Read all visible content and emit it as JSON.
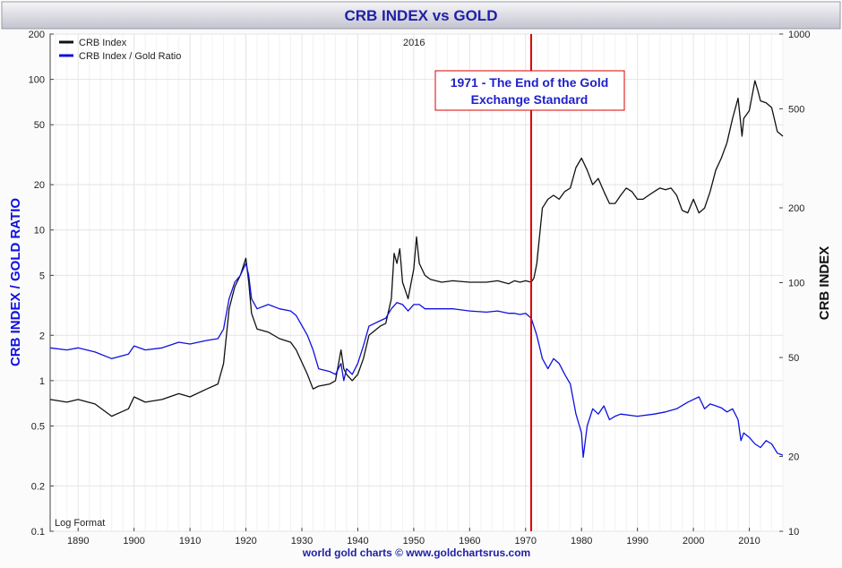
{
  "chart_data": {
    "type": "line",
    "title": "CRB INDEX vs GOLD",
    "year_label": "2016",
    "y_left_label": "CRB INDEX / GOLD RATIO",
    "y_right_label": "CRB INDEX",
    "log_note": "Log Format",
    "footer": "world gold charts © www.goldchartsrus.com",
    "x_range": [
      1885,
      2016
    ],
    "y_left_range": [
      0.1,
      200
    ],
    "y_right_range": [
      10,
      1000
    ],
    "y_scale": "log",
    "x_ticks": [
      1890,
      1900,
      1910,
      1920,
      1930,
      1940,
      1950,
      1960,
      1970,
      1980,
      1990,
      2000,
      2010
    ],
    "x_tick_labels": [
      "1890",
      "1900",
      "1910",
      "1920",
      "1930",
      "1940",
      "1950",
      "1960",
      "1970",
      "1980",
      "1990",
      "2000",
      "2010"
    ],
    "y_left_ticks": [
      0.1,
      0.2,
      0.5,
      1,
      2,
      5,
      10,
      20,
      50,
      100,
      200
    ],
    "y_left_tick_labels": [
      "0.1",
      "0.2",
      "0.5",
      "1",
      "2",
      "5",
      "10",
      "20",
      "50",
      "100",
      "200"
    ],
    "y_right_ticks": [
      10,
      20,
      50,
      100,
      200,
      500,
      1000
    ],
    "y_right_tick_labels": [
      "10",
      "20",
      "50",
      "100",
      "200",
      "500",
      "1000"
    ],
    "grid": true,
    "legend_position": "top-left",
    "annotation": {
      "x": 1971,
      "lines": [
        "1971 - The End of the Gold",
        "Exchange Standard"
      ],
      "color": "#dd0000"
    },
    "series": [
      {
        "name": "CRB Index",
        "color": "#111111",
        "axis": "left",
        "x": [
          1885,
          1888,
          1890,
          1893,
          1896,
          1899,
          1900,
          1902,
          1905,
          1908,
          1910,
          1913,
          1915,
          1916,
          1917,
          1918,
          1919,
          1920,
          1920.5,
          1921,
          1922,
          1924,
          1926,
          1928,
          1929,
          1931,
          1932,
          1933,
          1935,
          1936,
          1937,
          1937.5,
          1938,
          1939,
          1940,
          1941,
          1942,
          1944,
          1945,
          1946,
          1946.5,
          1947,
          1947.5,
          1948,
          1949,
          1950,
          1950.5,
          1951,
          1952,
          1953,
          1955,
          1957,
          1960,
          1963,
          1965,
          1967,
          1968,
          1969,
          1970,
          1971,
          1971.5,
          1972,
          1973,
          1974,
          1975,
          1976,
          1977,
          1978,
          1979,
          1980,
          1981,
          1982,
          1983,
          1984,
          1985,
          1986,
          1987,
          1988,
          1989,
          1990,
          1991,
          1992,
          1993,
          1994,
          1995,
          1996,
          1997,
          1998,
          1999,
          2000,
          2001,
          2002,
          2003,
          2004,
          2005,
          2006,
          2007,
          2008,
          2008.7,
          2009,
          2010,
          2011,
          2011.5,
          2012,
          2013,
          2014,
          2015,
          2016
        ],
        "y": [
          0.75,
          0.72,
          0.75,
          0.7,
          0.58,
          0.65,
          0.78,
          0.72,
          0.75,
          0.82,
          0.78,
          0.88,
          0.95,
          1.3,
          3.0,
          4.2,
          5.0,
          6.5,
          4.5,
          2.8,
          2.2,
          2.1,
          1.9,
          1.8,
          1.6,
          1.1,
          0.88,
          0.92,
          0.95,
          1.0,
          1.6,
          1.2,
          1.1,
          1.0,
          1.1,
          1.4,
          2.0,
          2.3,
          2.4,
          3.5,
          7.0,
          6.0,
          7.5,
          4.5,
          3.5,
          5.5,
          9.0,
          6.0,
          5.0,
          4.7,
          4.5,
          4.6,
          4.5,
          4.5,
          4.6,
          4.4,
          4.6,
          4.5,
          4.6,
          4.5,
          4.8,
          6.0,
          14.0,
          16.0,
          17.0,
          16.0,
          18.0,
          19.0,
          26.0,
          30.0,
          25.0,
          20.0,
          22.0,
          18.0,
          15.0,
          15.0,
          17.0,
          19.0,
          18.0,
          16.0,
          16.0,
          17.0,
          18.0,
          19.0,
          18.5,
          19.0,
          17.0,
          13.5,
          13.0,
          16.0,
          13.0,
          14.0,
          18.0,
          25.0,
          30.0,
          38.0,
          55.0,
          75.0,
          42.0,
          55.0,
          62.0,
          98.0,
          85.0,
          72.0,
          70.0,
          65.0,
          45.0,
          42.0
        ]
      },
      {
        "name": "CRB Index / Gold Ratio",
        "color": "#1010e0",
        "axis": "left",
        "x": [
          1885,
          1888,
          1890,
          1893,
          1896,
          1899,
          1900,
          1902,
          1905,
          1908,
          1910,
          1913,
          1915,
          1916,
          1917,
          1918,
          1919,
          1920,
          1920.5,
          1921,
          1922,
          1924,
          1926,
          1928,
          1929,
          1931,
          1932,
          1933,
          1935,
          1936,
          1937,
          1937.5,
          1938,
          1939,
          1940,
          1941,
          1942,
          1944,
          1945,
          1946,
          1947,
          1948,
          1949,
          1950,
          1951,
          1952,
          1955,
          1957,
          1960,
          1963,
          1965,
          1967,
          1968,
          1969,
          1970,
          1971,
          1972,
          1973,
          1974,
          1975,
          1976,
          1977,
          1978,
          1979,
          1980,
          1980.3,
          1981,
          1982,
          1983,
          1984,
          1985,
          1986,
          1987,
          1990,
          1993,
          1995,
          1997,
          1999,
          2000,
          2001,
          2002,
          2003,
          2004,
          2005,
          2006,
          2007,
          2008,
          2008.5,
          2009,
          2010,
          2011,
          2012,
          2013,
          2014,
          2015,
          2016
        ],
        "y": [
          1.65,
          1.6,
          1.65,
          1.55,
          1.4,
          1.5,
          1.7,
          1.6,
          1.65,
          1.8,
          1.75,
          1.85,
          1.9,
          2.2,
          3.5,
          4.5,
          5.0,
          6.0,
          5.0,
          3.5,
          3.0,
          3.2,
          3.0,
          2.9,
          2.7,
          2.0,
          1.6,
          1.2,
          1.15,
          1.1,
          1.3,
          1.0,
          1.2,
          1.1,
          1.3,
          1.7,
          2.3,
          2.5,
          2.6,
          3.0,
          3.3,
          3.2,
          2.9,
          3.2,
          3.2,
          3.0,
          3.0,
          3.0,
          2.9,
          2.85,
          2.9,
          2.8,
          2.8,
          2.75,
          2.8,
          2.6,
          2.0,
          1.4,
          1.2,
          1.4,
          1.3,
          1.1,
          0.95,
          0.6,
          0.45,
          0.31,
          0.5,
          0.65,
          0.6,
          0.68,
          0.55,
          0.58,
          0.6,
          0.58,
          0.6,
          0.62,
          0.65,
          0.72,
          0.75,
          0.78,
          0.65,
          0.7,
          0.68,
          0.66,
          0.62,
          0.65,
          0.55,
          0.4,
          0.45,
          0.42,
          0.38,
          0.36,
          0.4,
          0.38,
          0.33,
          0.32
        ]
      }
    ]
  }
}
